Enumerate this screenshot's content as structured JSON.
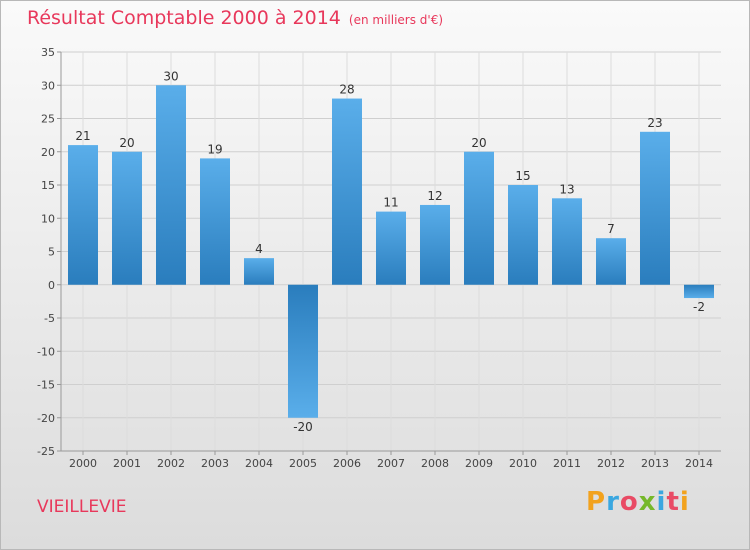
{
  "header": {
    "title": "Résultat Comptable 2000 à 2014",
    "unit": "(en milliers d'€)"
  },
  "commune": "VIEILLEVIE",
  "logo": {
    "letters": [
      "P",
      "r",
      "o",
      "x",
      "i",
      "t",
      "i"
    ]
  },
  "colors": {
    "accent": "#e8385b",
    "bar_light": "#5aaeea",
    "bar_dark": "#2a7dbd"
  },
  "chart_data": {
    "type": "bar",
    "title": "Résultat Comptable 2000 à 2014",
    "xlabel": "",
    "ylabel": "",
    "categories": [
      "2000",
      "2001",
      "2002",
      "2003",
      "2004",
      "2005",
      "2006",
      "2007",
      "2008",
      "2009",
      "2010",
      "2011",
      "2012",
      "2013",
      "2014"
    ],
    "values": [
      21,
      20,
      30,
      19,
      4,
      -20,
      28,
      11,
      12,
      20,
      15,
      13,
      7,
      23,
      -2
    ],
    "ylim": [
      -25,
      35
    ],
    "yticks": [
      35,
      30,
      25,
      20,
      15,
      10,
      5,
      0,
      -5,
      -10,
      -15,
      -20,
      -25
    ],
    "grid": true
  }
}
